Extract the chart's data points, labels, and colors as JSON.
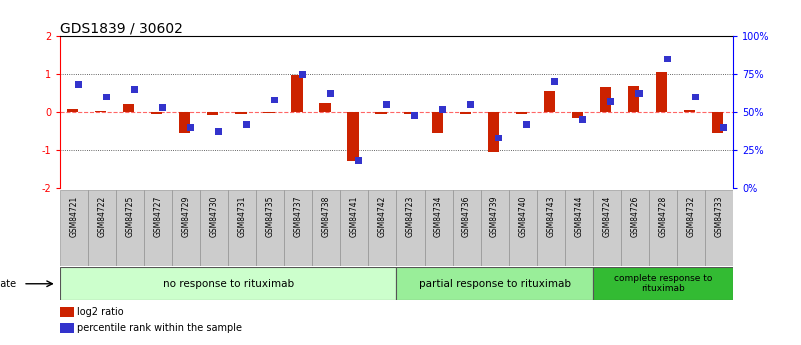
{
  "title": "GDS1839 / 30602",
  "samples": [
    "GSM84721",
    "GSM84722",
    "GSM84725",
    "GSM84727",
    "GSM84729",
    "GSM84730",
    "GSM84731",
    "GSM84735",
    "GSM84737",
    "GSM84738",
    "GSM84741",
    "GSM84742",
    "GSM84723",
    "GSM84734",
    "GSM84736",
    "GSM84739",
    "GSM84740",
    "GSM84743",
    "GSM84744",
    "GSM84724",
    "GSM84726",
    "GSM84728",
    "GSM84732",
    "GSM84733"
  ],
  "log2_ratio": [
    0.08,
    0.02,
    0.22,
    -0.05,
    -0.55,
    -0.07,
    -0.05,
    -0.03,
    0.98,
    0.25,
    -1.28,
    -0.05,
    -0.05,
    -0.55,
    -0.05,
    -1.05,
    -0.05,
    0.55,
    -0.15,
    0.65,
    0.7,
    1.05,
    0.05,
    -0.55
  ],
  "percentile_rank": [
    68,
    60,
    65,
    53,
    40,
    37,
    42,
    58,
    75,
    62,
    18,
    55,
    48,
    52,
    55,
    33,
    42,
    70,
    45,
    57,
    62,
    85,
    60,
    40
  ],
  "groups": [
    {
      "label": "no response to rituximab",
      "start": 0,
      "end": 12,
      "color": "#ccffcc"
    },
    {
      "label": "partial response to rituximab",
      "start": 12,
      "end": 19,
      "color": "#99ee99"
    },
    {
      "label": "complete response to\nrituximab",
      "start": 19,
      "end": 24,
      "color": "#33bb33"
    }
  ],
  "ylim_left": [
    -2,
    2
  ],
  "ylim_right": [
    0,
    100
  ],
  "yticks_left": [
    -2,
    -1,
    0,
    1,
    2
  ],
  "yticks_right": [
    0,
    25,
    50,
    75,
    100
  ],
  "ytick_labels_right": [
    "0%",
    "25%",
    "50%",
    "75%",
    "100%"
  ],
  "bar_color_red": "#cc2200",
  "bar_color_blue": "#3333cc",
  "zero_line_color": "#ff6666",
  "grid_color": "#333333",
  "title_fontsize": 10,
  "tick_fontsize": 7,
  "background_color": "#ffffff"
}
